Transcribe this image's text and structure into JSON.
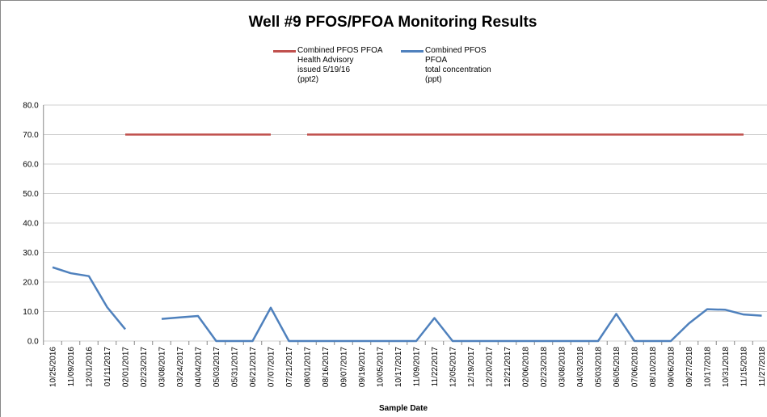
{
  "chart_data": {
    "type": "line",
    "title": "Well #9 PFOS/PFOA Monitoring Results",
    "x_label": "Sample Date",
    "categories": [
      "10/25/2016",
      "11/09/2016",
      "12/01/2016",
      "01/11/2017",
      "02/01/2017",
      "02/23/2017",
      "03/08/2017",
      "03/24/2017",
      "04/04/2017",
      "05/03/2017",
      "05/31/2017",
      "06/21/2017",
      "07/07/2017",
      "07/21/2017",
      "08/01/2017",
      "08/16/2017",
      "09/07/2017",
      "09/19/2017",
      "10/05/2017",
      "10/17/2017",
      "11/09/2017",
      "11/22/2017",
      "12/05/2017",
      "12/19/2017",
      "12/20/2017",
      "12/21/2017",
      "02/06/2018",
      "02/23/2018",
      "03/08/2018",
      "04/03/2018",
      "05/03/2018",
      "06/05/2018",
      "07/06/2018",
      "08/10/2018",
      "09/06/2018",
      "09/27/2018",
      "10/17/2018",
      "10/31/2018",
      "11/15/2018",
      "11/27/2018"
    ],
    "series": [
      {
        "name": "Combined PFOS PFOA\nHealth Advisory\nissued 5/19/16\n(ppt2)",
        "color": "#c0504d",
        "values": [
          null,
          null,
          null,
          null,
          70,
          70,
          70,
          70,
          70,
          70,
          70,
          70,
          70,
          null,
          70,
          70,
          70,
          70,
          70,
          70,
          70,
          70,
          70,
          70,
          70,
          70,
          70,
          70,
          70,
          70,
          70,
          70,
          70,
          70,
          70,
          70,
          70,
          70,
          70,
          null
        ]
      },
      {
        "name": "Combined PFOS\nPFOA\ntotal concentration\n(ppt)",
        "color": "#4f81bd",
        "values": [
          25,
          23,
          22,
          11.5,
          4,
          null,
          7.5,
          8,
          8.5,
          0,
          0,
          0,
          11.3,
          0,
          0,
          0,
          0,
          0,
          0,
          0,
          0,
          7.8,
          0,
          0,
          0,
          0,
          0,
          0,
          0,
          0,
          0,
          9.2,
          0,
          0,
          0,
          6,
          10.8,
          10.6,
          9,
          8.6
        ]
      }
    ],
    "ylim": [
      0,
      80
    ],
    "yticks": [
      {
        "value": 0,
        "label": "0.0"
      },
      {
        "value": 10,
        "label": "10.0"
      },
      {
        "value": 20,
        "label": "20.0"
      },
      {
        "value": 30,
        "label": "30.0"
      },
      {
        "value": 40,
        "label": "40.0"
      },
      {
        "value": 50,
        "label": "50.0"
      },
      {
        "value": 60,
        "label": "60.0"
      },
      {
        "value": 70,
        "label": "70.0"
      },
      {
        "value": 80,
        "label": "80.0"
      }
    ],
    "grid": true
  }
}
